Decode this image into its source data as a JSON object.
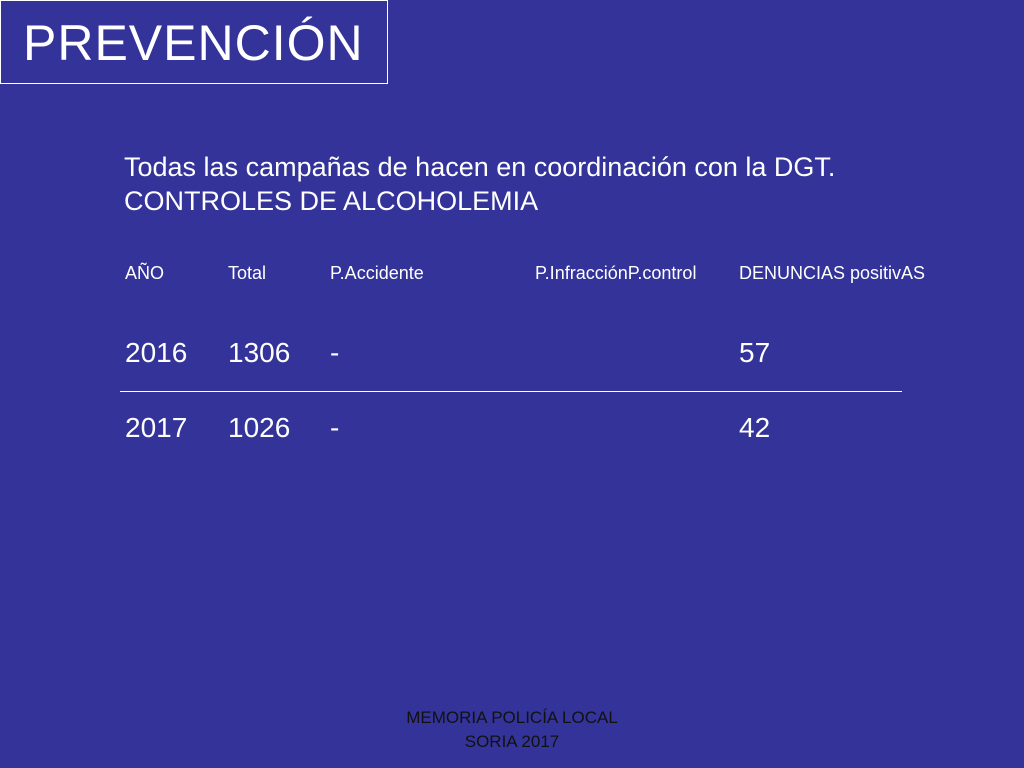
{
  "title": "PREVENCIÓN",
  "intro": {
    "line1": "Todas las campañas de hacen en coordinación con la DGT.",
    "line2": "CONTROLES DE ALCOHOLEMIA"
  },
  "table": {
    "headers": {
      "year": "AÑO",
      "total": "Total",
      "accident": "P.Accidente",
      "infraction_control": "P.InfracciónP.control",
      "denuncias": "DENUNCIAS positivAS"
    },
    "rows": [
      {
        "year": "2016",
        "total": "1306",
        "accident": "-",
        "denuncias": "57"
      },
      {
        "year": "2017",
        "total": "1026",
        "accident": "-",
        "denuncias": "42"
      }
    ]
  },
  "footer": {
    "line1": "MEMORIA POLICÍA LOCAL",
    "line2": "SORIA 2017"
  },
  "colors": {
    "background": "#333399",
    "text": "#ffffff",
    "footer_text": "#111111"
  }
}
